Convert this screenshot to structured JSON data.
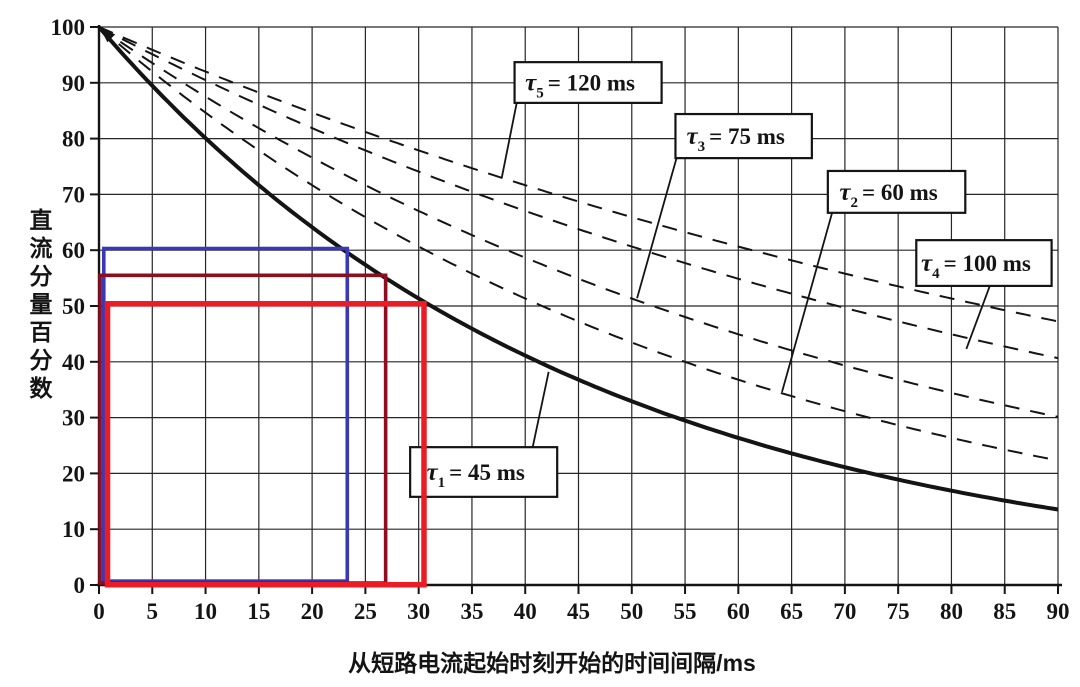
{
  "page": {
    "background": "#ffffff"
  },
  "chart_data": {
    "type": "line",
    "title": "",
    "xlabel": "从短路电流起始时刻开始的时间间隔/ms",
    "ylabel": "直流分量百分数",
    "xlim": [
      0,
      90
    ],
    "ylim": [
      0,
      100
    ],
    "x_ticks": [
      0,
      5,
      10,
      15,
      20,
      25,
      30,
      35,
      40,
      45,
      50,
      55,
      60,
      65,
      70,
      75,
      80,
      85,
      90
    ],
    "y_ticks": [
      0,
      10,
      20,
      30,
      40,
      50,
      60,
      70,
      80,
      90,
      100
    ],
    "grid": true,
    "ink": "#141414",
    "curve_model": "y = 100 * exp(-t / tau_ms)",
    "x_sample": [
      0,
      10,
      20,
      30,
      40,
      50,
      60,
      70,
      80,
      90
    ],
    "series": [
      {
        "id": "tau1",
        "tau_ms": 45,
        "style": "solid",
        "label_full": "τ1 = 45 ms",
        "values": [
          100,
          80.1,
          64.1,
          51.3,
          41.1,
          32.9,
          26.4,
          21.1,
          16.9,
          13.5
        ]
      },
      {
        "id": "tau2",
        "tau_ms": 60,
        "style": "dashed",
        "label_full": "τ2 = 60 ms",
        "values": [
          100,
          84.6,
          71.7,
          60.7,
          51.3,
          43.5,
          36.8,
          31.1,
          26.4,
          22.3
        ]
      },
      {
        "id": "tau3",
        "tau_ms": 75,
        "style": "dashed",
        "label_full": "τ3 = 75 ms",
        "values": [
          100,
          87.5,
          76.6,
          67.0,
          58.7,
          51.3,
          44.9,
          39.3,
          34.4,
          30.1
        ]
      },
      {
        "id": "tau4",
        "tau_ms": 100,
        "style": "dashed",
        "label_full": "τ4 = 100 ms",
        "values": [
          100,
          90.5,
          81.9,
          74.1,
          67.0,
          60.7,
          54.9,
          49.7,
          44.9,
          40.7
        ]
      },
      {
        "id": "tau5",
        "tau_ms": 120,
        "style": "dashed",
        "label_full": "τ5 = 120 ms",
        "values": [
          100,
          92.0,
          84.7,
          77.9,
          71.7,
          65.9,
          60.7,
          55.8,
          51.3,
          47.2
        ]
      }
    ],
    "annotations": [
      {
        "id": "tau5-label",
        "sym": "τ",
        "sub": "5",
        "rest": "= 120 ms",
        "box_x": [
          39.0,
          52.8
        ],
        "box_y": [
          86.4,
          93.7
        ],
        "leader": [
          [
            39.2,
            86.4
          ],
          [
            37.8,
            73.0
          ]
        ]
      },
      {
        "id": "tau3-label",
        "sym": "τ",
        "sub": "3",
        "rest": "= 75 ms",
        "box_x": [
          54.1,
          66.9
        ],
        "box_y": [
          76.5,
          84.4
        ],
        "leader": [
          [
            54.2,
            76.5
          ],
          [
            50.5,
            51.4
          ]
        ]
      },
      {
        "id": "tau2-label",
        "sym": "τ",
        "sub": "2",
        "rest": "= 60 ms",
        "box_x": [
          68.4,
          81.3
        ],
        "box_y": [
          66.7,
          74.2
        ],
        "leader": [
          [
            68.8,
            66.7
          ],
          [
            64.1,
            34.6
          ]
        ]
      },
      {
        "id": "tau4-label",
        "sym": "τ",
        "sub": "4",
        "rest": "= 100 ms",
        "box_x": [
          76.7,
          89.4
        ],
        "box_y": [
          53.6,
          61.8
        ],
        "leader": [
          [
            83.6,
            53.6
          ],
          [
            81.4,
            42.3
          ]
        ]
      },
      {
        "id": "tau1-label",
        "sym": "τ",
        "sub": "1",
        "rest": "= 45 ms",
        "box_x": [
          29.2,
          43.0
        ],
        "box_y": [
          15.8,
          24.7
        ],
        "leader": [
          [
            40.7,
            24.7
          ],
          [
            42.2,
            38.2
          ]
        ]
      }
    ],
    "reference_rectangles": [
      {
        "id": "blue-rectangle",
        "color": "#3a39b5",
        "x": [
          0.45,
          23.3
        ],
        "y": [
          0.7,
          60.3
        ],
        "stroke_width": 3.6
      },
      {
        "id": "dark-red-rectangle",
        "color": "#8c0e1f",
        "x": [
          0.1,
          26.9
        ],
        "y": [
          0.35,
          55.5
        ],
        "stroke_width": 3.6
      },
      {
        "id": "red-rectangle",
        "color": "#ec1c24",
        "x": [
          0.8,
          30.5
        ],
        "y": [
          0.05,
          50.4
        ],
        "stroke_width": 5.5
      }
    ],
    "arrow_origin": {
      "x": 0,
      "y": 100
    }
  }
}
